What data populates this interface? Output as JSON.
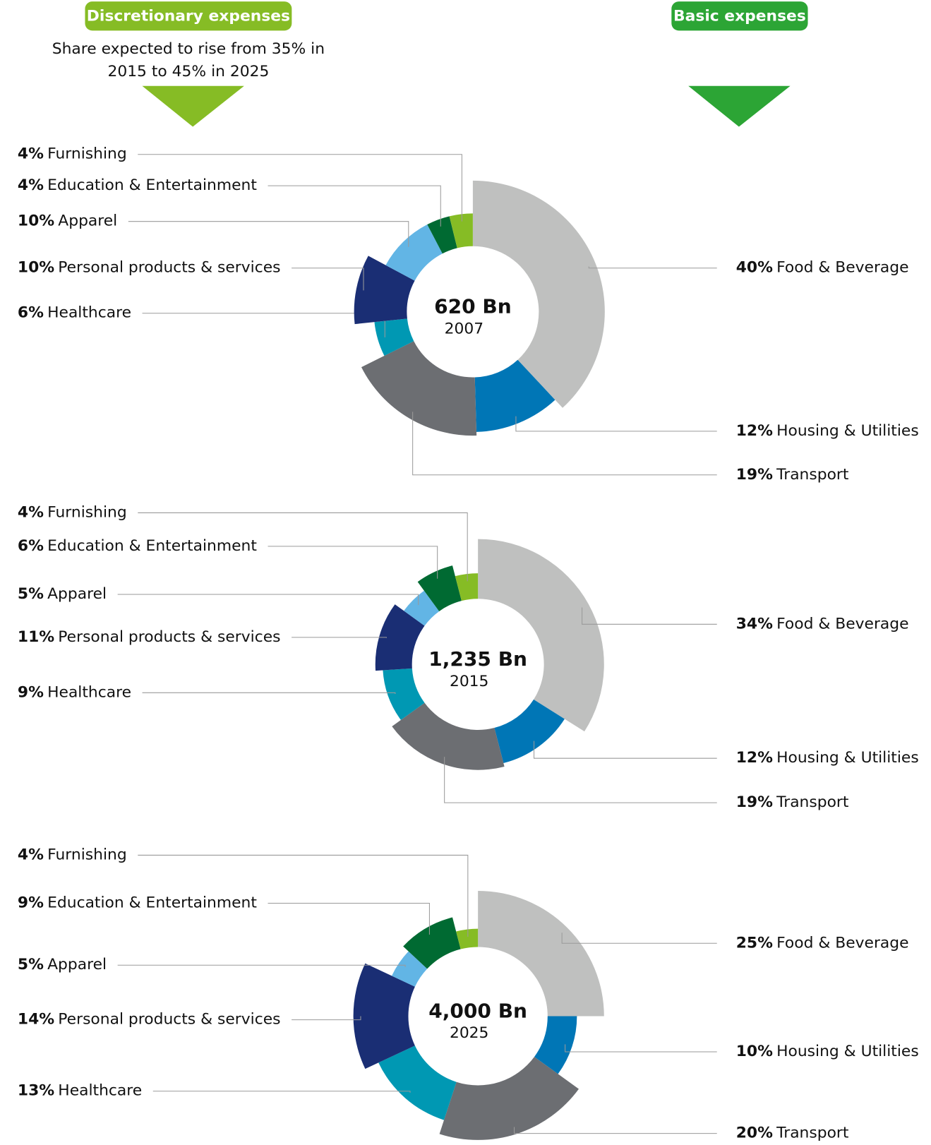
{
  "header": {
    "left": {
      "title": "Discretionary expenses",
      "note": [
        "Share expected to rise from 35% in",
        "2015 to 45% in 2025"
      ]
    },
    "right": {
      "title": "Basic expenses"
    }
  },
  "chart_data": [
    {
      "type": "pie",
      "total": "620 Bn",
      "year": "2007",
      "categories": [
        "Food & Beverage",
        "Housing & Utilities",
        "Transport",
        "Healthcare",
        "Personal products & services",
        "Apparel",
        "Education & Entertainment",
        "Furnishing"
      ],
      "values": [
        40,
        12,
        19,
        6,
        10,
        10,
        4,
        4
      ],
      "value_labels": [
        "40%",
        "12%",
        "19%",
        "6%",
        "10%",
        "10%",
        "4%",
        "4%"
      ],
      "colors": [
        "#bfc0bf",
        "#0076b6",
        "#6c6e72",
        "#0098b3",
        "#1a2e74",
        "#62b5e5",
        "#006a32",
        "#86bc25"
      ]
    },
    {
      "type": "pie",
      "total": "1,235 Bn",
      "year": "2015",
      "categories": [
        "Food & Beverage",
        "Housing & Utilities",
        "Transport",
        "Healthcare",
        "Personal products & services",
        "Apparel",
        "Education & Entertainment",
        "Furnishing"
      ],
      "values": [
        34,
        12,
        19,
        9,
        11,
        5,
        6,
        4
      ],
      "value_labels": [
        "34%",
        "12%",
        "19%",
        "9%",
        "11%",
        "5%",
        "6%",
        "4%"
      ],
      "colors": [
        "#bfc0bf",
        "#0076b6",
        "#6c6e72",
        "#0098b3",
        "#1a2e74",
        "#62b5e5",
        "#006a32",
        "#86bc25"
      ]
    },
    {
      "type": "pie",
      "total": "4,000 Bn",
      "year": "2025",
      "categories": [
        "Food & Beverage",
        "Housing & Utilities",
        "Transport",
        "Healthcare",
        "Personal products & services",
        "Apparel",
        "Education & Entertainment",
        "Furnishing"
      ],
      "values": [
        25,
        10,
        20,
        13,
        14,
        5,
        9,
        4
      ],
      "value_labels": [
        "25%",
        "10%",
        "20%",
        "13%",
        "14%",
        "5%",
        "9%",
        "4%"
      ],
      "colors": [
        "#bfc0bf",
        "#0076b6",
        "#6c6e72",
        "#0098b3",
        "#1a2e74",
        "#62b5e5",
        "#006a32",
        "#86bc25"
      ]
    }
  ]
}
